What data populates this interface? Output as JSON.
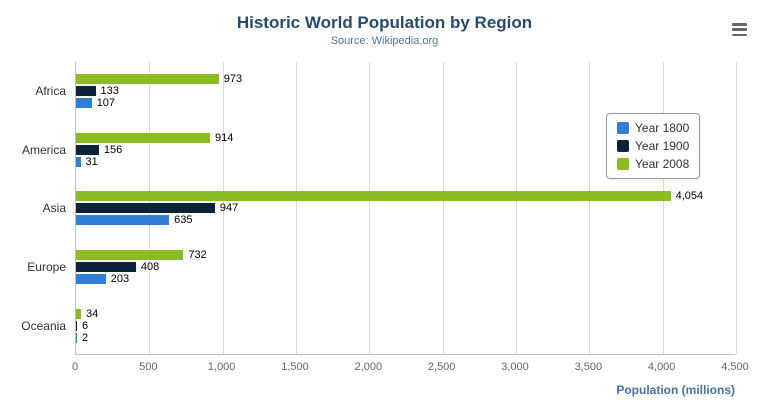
{
  "chart_data": {
    "type": "bar",
    "title": "Historic World Population by Region",
    "subtitle": "Source: Wikipedia.org",
    "categories": [
      "Africa",
      "America",
      "Asia",
      "Europe",
      "Oceania"
    ],
    "series": [
      {
        "name": "Year 1800",
        "color": "#2f7ed8",
        "values": [
          107,
          31,
          635,
          203,
          2
        ]
      },
      {
        "name": "Year 1900",
        "color": "#0d233a",
        "values": [
          133,
          156,
          947,
          408,
          6
        ]
      },
      {
        "name": "Year 2008",
        "color": "#8bbc21",
        "values": [
          973,
          914,
          4054,
          732,
          34
        ]
      }
    ],
    "bar_order_top_to_bottom": [
      "Year 2008",
      "Year 1900",
      "Year 1800"
    ],
    "xlabel": "Population (millions)",
    "xlim": [
      0,
      4500
    ],
    "tick_step": 500,
    "x_tick_labels": [
      "0",
      "500",
      "1,000",
      "1,500",
      "2,000",
      "2,500",
      "3,000",
      "3,500",
      "4,000",
      "4,500"
    ],
    "grid": true,
    "legend_position": "right",
    "colors": {
      "title": "#274b6d",
      "subtitle": "#4d759e",
      "axis_title": "#4572a7",
      "tick_label": "#666666",
      "category_label": "#333333",
      "gridline": "#d8d8d8",
      "axis_line": "#c0c0c8",
      "value_label": "#000000"
    },
    "menu_icon": "hamburger-menu-icon"
  }
}
